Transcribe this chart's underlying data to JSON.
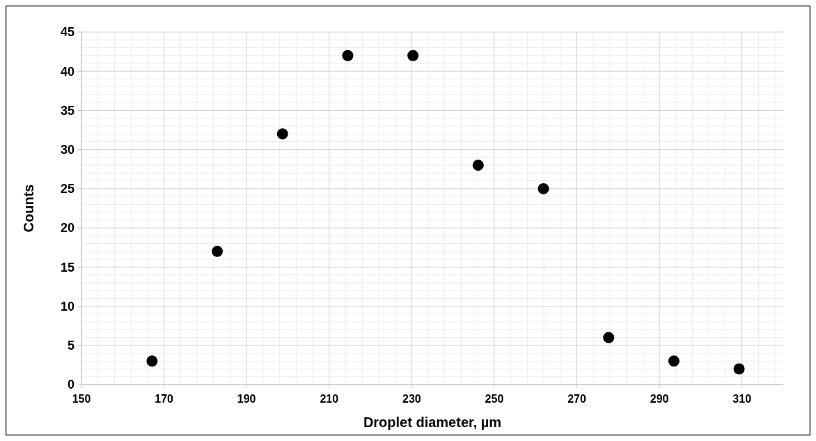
{
  "chart_data": {
    "type": "scatter",
    "xlabel": "Droplet diameter, µm",
    "ylabel": "Counts",
    "x": [
      167.1,
      182.9,
      198.7,
      214.5,
      230.3,
      246.1,
      261.9,
      277.7,
      293.5,
      309.3
    ],
    "series": [
      {
        "color": "#000000",
        "values": [
          3,
          17,
          32,
          42,
          42,
          28,
          25,
          6,
          3,
          2
        ]
      }
    ],
    "xlim": [
      150,
      320
    ],
    "xticks": [
      150,
      170,
      190,
      210,
      230,
      250,
      270,
      290,
      310
    ],
    "ylim": [
      0,
      45
    ],
    "yticks": [
      0,
      5,
      10,
      15,
      20,
      25,
      30,
      35,
      40,
      45
    ],
    "grid": true,
    "marker": "circle"
  }
}
